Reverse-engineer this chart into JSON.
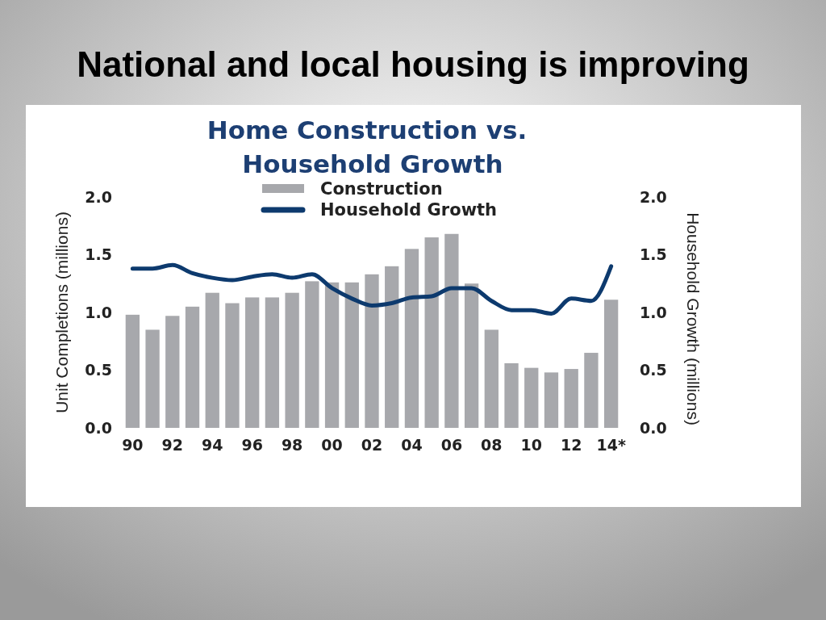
{
  "chart_data": {
    "type": "bar",
    "title": "National and local housing is improving",
    "subtitle": "Home Construction vs. Household Growth",
    "ylabel": "Unit Completions (millions)",
    "y2label": "Household Growth (millions)",
    "categories": [
      "90",
      null,
      "92",
      null,
      "94",
      null,
      "96",
      null,
      "98",
      null,
      "00",
      null,
      "02",
      null,
      "04",
      null,
      "06",
      null,
      "08",
      null,
      "10",
      null,
      "12",
      null,
      "14*"
    ],
    "series": [
      {
        "name": "Construction",
        "color": "#a7a8ac",
        "values": [
          0.98,
          0.85,
          0.97,
          1.05,
          1.17,
          1.08,
          1.13,
          1.13,
          1.17,
          1.27,
          1.26,
          1.26,
          1.33,
          1.4,
          1.55,
          1.65,
          1.68,
          1.25,
          0.85,
          0.56,
          0.52,
          0.48,
          0.51,
          0.65,
          1.11
        ]
      },
      {
        "name": "Household Growth",
        "type": "line",
        "axis": "y2",
        "color": "#0d3a6e",
        "values": [
          1.38,
          1.38,
          1.41,
          1.34,
          1.3,
          1.28,
          1.31,
          1.33,
          1.3,
          1.33,
          1.21,
          1.12,
          1.06,
          1.08,
          1.13,
          1.14,
          1.21,
          1.21,
          1.1,
          1.02,
          1.02,
          0.99,
          1.12,
          1.1,
          1.4
        ]
      }
    ],
    "ylim": [
      0,
      2
    ],
    "yticks": [
      {
        "value": 0,
        "label": "0.0"
      },
      {
        "value": 0.5,
        "label": "0.5"
      },
      {
        "value": 1,
        "label": "1.0"
      },
      {
        "value": 1.5,
        "label": "1.5"
      },
      {
        "value": 2,
        "label": "2.0"
      }
    ],
    "y2lim": [
      0,
      2
    ],
    "y2ticks": [
      {
        "value": 0,
        "label": "0.0"
      },
      {
        "value": 0.5,
        "label": "0.5"
      },
      {
        "value": 1,
        "label": "1.0"
      },
      {
        "value": 1.5,
        "label": "1.5"
      },
      {
        "value": 2,
        "label": "2.0"
      }
    ],
    "legend": "top",
    "grid": false,
    "marker": "none",
    "line_style": "solid"
  }
}
